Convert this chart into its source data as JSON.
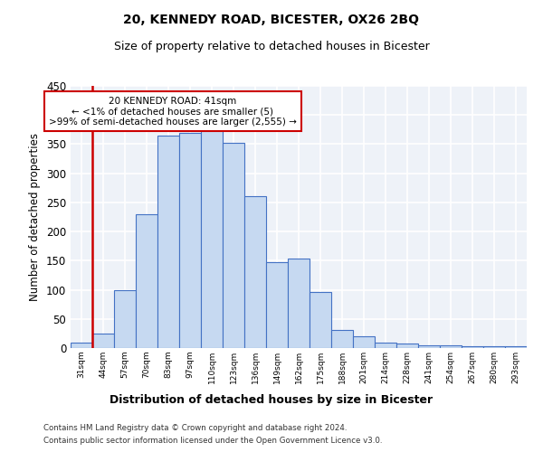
{
  "title1": "20, KENNEDY ROAD, BICESTER, OX26 2BQ",
  "title2": "Size of property relative to detached houses in Bicester",
  "xlabel": "Distribution of detached houses by size in Bicester",
  "ylabel": "Number of detached properties",
  "footer1": "Contains HM Land Registry data © Crown copyright and database right 2024.",
  "footer2": "Contains public sector information licensed under the Open Government Licence v3.0.",
  "annotation_line1": "20 KENNEDY ROAD: 41sqm",
  "annotation_line2": "← <1% of detached houses are smaller (5)",
  "annotation_line3": ">99% of semi-detached houses are larger (2,555) →",
  "bar_labels": [
    "31sqm",
    "44sqm",
    "57sqm",
    "70sqm",
    "83sqm",
    "97sqm",
    "110sqm",
    "123sqm",
    "136sqm",
    "149sqm",
    "162sqm",
    "175sqm",
    "188sqm",
    "201sqm",
    "214sqm",
    "228sqm",
    "241sqm",
    "254sqm",
    "267sqm",
    "280sqm",
    "293sqm"
  ],
  "bar_values": [
    10,
    25,
    100,
    230,
    365,
    370,
    375,
    353,
    260,
    147,
    153,
    96,
    31,
    20,
    10,
    8,
    5,
    5,
    3,
    3,
    3
  ],
  "bar_color": "#c6d9f1",
  "bar_edge_color": "#4472c4",
  "marker_color": "#cc0000",
  "ylim": [
    0,
    450
  ],
  "yticks": [
    0,
    50,
    100,
    150,
    200,
    250,
    300,
    350,
    400,
    450
  ],
  "bg_color": "#eef2f8"
}
